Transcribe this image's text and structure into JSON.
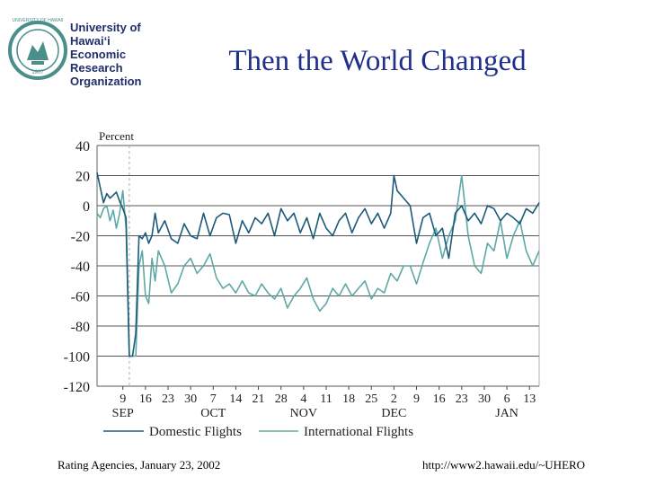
{
  "logo": {
    "line1": "University of",
    "line2": "Hawai‘i",
    "line3": "Economic",
    "line4": "Research",
    "line5": "Organization",
    "seal_text": "UNIVERSITY OF HAWAII",
    "year": "1907"
  },
  "slide_title": "Then the World Changed",
  "footer": {
    "left": "Rating Agencies, January 23, 2002",
    "right": "http://www2.hawaii.edu/~UHERO"
  },
  "colors": {
    "title": "#1f2f8a",
    "domestic": "#1b5a7a",
    "international": "#5fa8a8",
    "grid": "#555555",
    "seal": "#4a8f8a"
  },
  "chart_data": {
    "type": "line",
    "ylabel": "Percent",
    "ylim": [
      -120,
      40
    ],
    "yticks": [
      40,
      20,
      0,
      -20,
      -40,
      -60,
      -80,
      -100,
      -120
    ],
    "xticks": [
      {
        "day": 9,
        "label": "9"
      },
      {
        "day": 16,
        "label": "16"
      },
      {
        "day": 23,
        "label": "23"
      },
      {
        "day": 30,
        "label": "30"
      },
      {
        "day": 37,
        "label": "7"
      },
      {
        "day": 44,
        "label": "14"
      },
      {
        "day": 51,
        "label": "21"
      },
      {
        "day": 58,
        "label": "28"
      },
      {
        "day": 65,
        "label": "4"
      },
      {
        "day": 72,
        "label": "11"
      },
      {
        "day": 79,
        "label": "18"
      },
      {
        "day": 86,
        "label": "25"
      },
      {
        "day": 93,
        "label": "2"
      },
      {
        "day": 100,
        "label": "9"
      },
      {
        "day": 107,
        "label": "16"
      },
      {
        "day": 114,
        "label": "23"
      },
      {
        "day": 121,
        "label": "30"
      },
      {
        "day": 128,
        "label": "6"
      },
      {
        "day": 135,
        "label": "13"
      }
    ],
    "months": [
      {
        "day": 9,
        "label": "SEP"
      },
      {
        "day": 37,
        "label": "OCT"
      },
      {
        "day": 65,
        "label": "NOV"
      },
      {
        "day": 93,
        "label": "DEC"
      },
      {
        "day": 128,
        "label": "JAN"
      }
    ],
    "xlim": [
      1,
      138
    ],
    "event_day": 11,
    "series": [
      {
        "name": "Domestic Flights",
        "x": [
          1,
          2,
          3,
          4,
          5,
          6,
          7,
          8,
          9,
          10,
          11,
          12,
          13,
          14,
          15,
          16,
          17,
          18,
          19,
          20,
          22,
          24,
          26,
          28,
          30,
          32,
          34,
          36,
          38,
          40,
          42,
          44,
          46,
          48,
          50,
          52,
          54,
          56,
          58,
          60,
          62,
          64,
          66,
          68,
          70,
          72,
          74,
          76,
          78,
          80,
          82,
          84,
          86,
          88,
          90,
          92,
          93,
          94,
          96,
          98,
          100,
          102,
          104,
          106,
          108,
          110,
          112,
          114,
          116,
          118,
          120,
          122,
          124,
          126,
          128,
          130,
          132,
          134,
          136,
          138
        ],
        "values": [
          22,
          12,
          2,
          8,
          5,
          7,
          9,
          3,
          -2,
          -8,
          -100,
          -100,
          -85,
          -20,
          -22,
          -18,
          -25,
          -20,
          -5,
          -18,
          -10,
          -22,
          -25,
          -12,
          -20,
          -22,
          -5,
          -20,
          -8,
          -5,
          -6,
          -25,
          -10,
          -18,
          -8,
          -12,
          -5,
          -20,
          -2,
          -10,
          -5,
          -18,
          -8,
          -22,
          -5,
          -15,
          -20,
          -10,
          -5,
          -18,
          -8,
          -2,
          -12,
          -5,
          -15,
          -5,
          20,
          10,
          5,
          0,
          -25,
          -8,
          -5,
          -20,
          -15,
          -35,
          -5,
          0,
          -10,
          -5,
          -12,
          0,
          -2,
          -10,
          -5,
          -8,
          -12,
          -2,
          -5,
          2
        ]
      },
      {
        "name": "International Flights",
        "x": [
          1,
          2,
          3,
          4,
          5,
          6,
          7,
          8,
          9,
          10,
          11,
          12,
          13,
          14,
          15,
          16,
          17,
          18,
          19,
          20,
          22,
          24,
          26,
          28,
          30,
          32,
          34,
          36,
          38,
          40,
          42,
          44,
          46,
          48,
          50,
          52,
          54,
          56,
          58,
          60,
          62,
          64,
          66,
          68,
          70,
          72,
          74,
          76,
          78,
          80,
          82,
          84,
          86,
          88,
          90,
          92,
          94,
          96,
          98,
          100,
          102,
          104,
          106,
          108,
          110,
          112,
          114,
          116,
          118,
          120,
          122,
          124,
          126,
          128,
          130,
          132,
          134,
          136,
          138
        ],
        "values": [
          -5,
          -8,
          -2,
          0,
          -10,
          -3,
          -15,
          -5,
          10,
          -15,
          -100,
          -100,
          -100,
          -40,
          -30,
          -60,
          -65,
          -35,
          -50,
          -30,
          -40,
          -58,
          -52,
          -40,
          -35,
          -45,
          -40,
          -32,
          -48,
          -55,
          -52,
          -58,
          -50,
          -58,
          -60,
          -52,
          -58,
          -62,
          -55,
          -68,
          -60,
          -55,
          -48,
          -62,
          -70,
          -65,
          -55,
          -60,
          -52,
          -60,
          -55,
          -50,
          -62,
          -55,
          -58,
          -45,
          -50,
          -40,
          -40,
          -52,
          -38,
          -25,
          -15,
          -35,
          -20,
          -10,
          20,
          -20,
          -40,
          -45,
          -25,
          -30,
          -10,
          -35,
          -20,
          -10,
          -30,
          -40,
          -30
        ]
      }
    ],
    "legend_position": "bottom"
  }
}
